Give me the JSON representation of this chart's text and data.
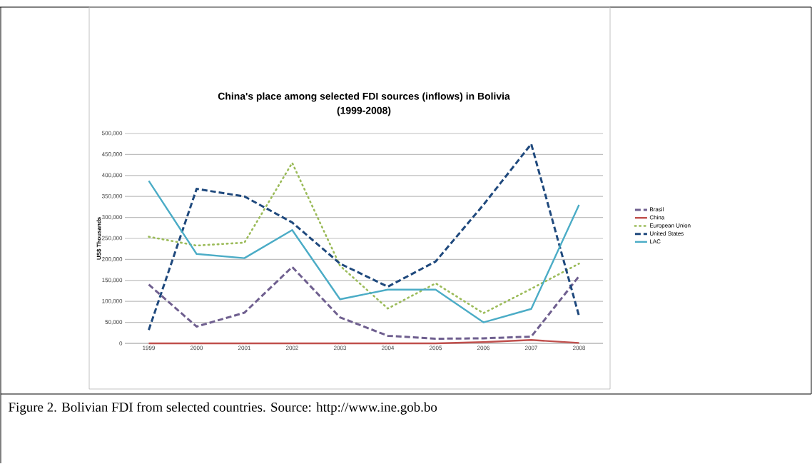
{
  "chart_data": {
    "type": "line",
    "title": "China's place among selected FDI sources (inflows) in Bolivia",
    "subtitle": "(1999-2008)",
    "ylabel": "US$ Thousands",
    "categories": [
      "1999",
      "2000",
      "2001",
      "2002",
      "2003",
      "2004",
      "2005",
      "2006",
      "2007",
      "2008"
    ],
    "series": [
      {
        "name": "Brasil",
        "color": "#6f5f8f",
        "line_style": "dashed",
        "values": [
          140000,
          40000,
          73000,
          182000,
          62000,
          18000,
          11000,
          12000,
          16000,
          160000
        ]
      },
      {
        "name": "China",
        "color": "#c0504d",
        "line_style": "solid",
        "values": [
          0,
          0,
          0,
          0,
          0,
          0,
          0,
          3000,
          8000,
          1000
        ]
      },
      {
        "name": "European Union",
        "color": "#9bbb59",
        "line_style": "dotted",
        "values": [
          254000,
          233000,
          240000,
          430000,
          185000,
          83000,
          143000,
          72000,
          130000,
          190000
        ]
      },
      {
        "name": "United States",
        "color": "#1f497d",
        "line_style": "dashed",
        "values": [
          32000,
          368000,
          350000,
          288000,
          190000,
          135000,
          195000,
          330000,
          475000,
          65000
        ]
      },
      {
        "name": "LAC",
        "color": "#4bacc6",
        "line_style": "solid",
        "values": [
          387000,
          213000,
          203000,
          270000,
          105000,
          128000,
          128000,
          50000,
          82000,
          330000
        ]
      }
    ],
    "ylim": [
      0,
      500000
    ],
    "yticks": [
      0,
      {
        "value": 50000,
        "label": "50,000"
      },
      {
        "value": 100000,
        "label": "100,000"
      },
      {
        "value": 150000,
        "label": "150,000"
      },
      {
        "value": 200000,
        "label": "200,000"
      },
      {
        "value": 250000,
        "label": "250,000"
      },
      {
        "value": 300000,
        "label": "300,000"
      },
      {
        "value": 350000,
        "label": "350,000"
      },
      {
        "value": 400000,
        "label": "400,000"
      },
      {
        "value": 450000,
        "label": "450,000"
      },
      {
        "value": 500000,
        "label": "500,000"
      }
    ],
    "grid": "y",
    "legend": "right",
    "annotations": [
      "Figure 2. Bolivian FDI from selected countries. Source: http://www.ine.gob.bo"
    ]
  }
}
